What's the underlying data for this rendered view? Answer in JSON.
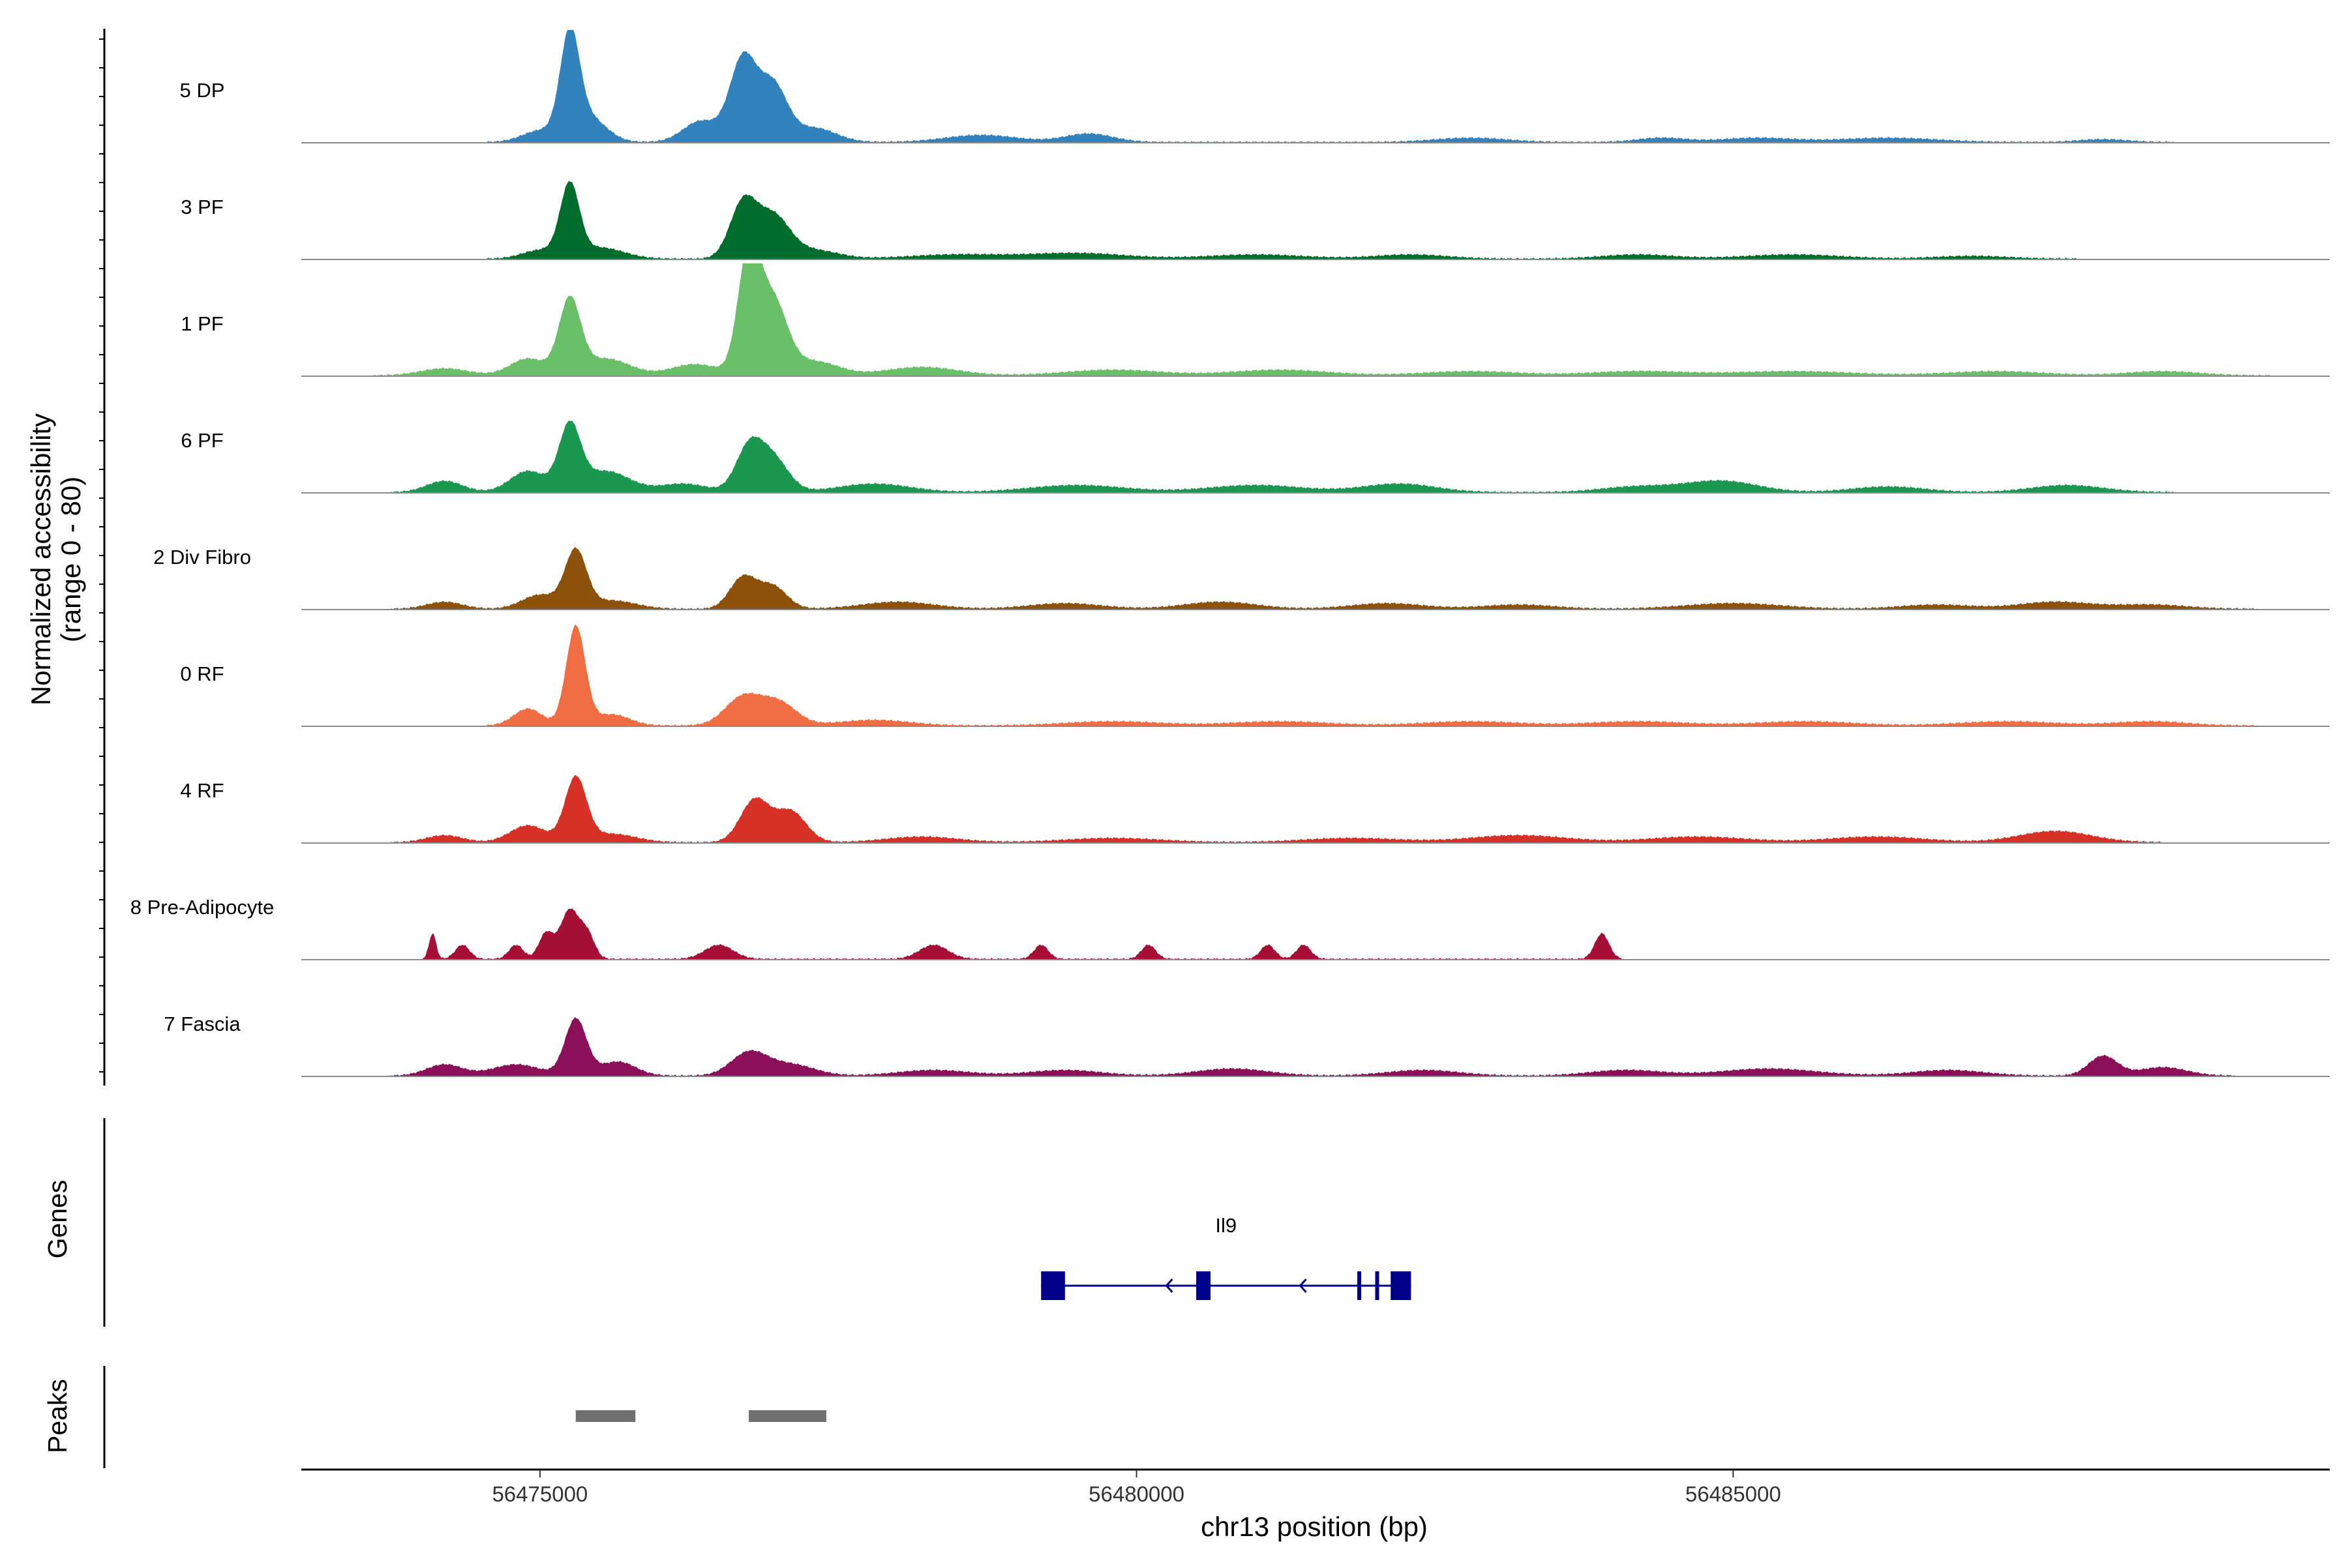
{
  "chart_data": {
    "type": "area",
    "x_axis": {
      "title": "chr13 position (bp)",
      "range": [
        56473000,
        56490000
      ],
      "ticks": [
        56475000,
        56480000,
        56485000
      ],
      "tick_labels": [
        "56475000",
        "56480000",
        "56485000"
      ]
    },
    "y_axis": {
      "title_line1": "Normalized accessibility",
      "title_line2": "(range 0 - 80)",
      "range": [
        0,
        80
      ]
    },
    "grid": false,
    "series": [
      {
        "name": "5 DP",
        "color": "#3182BD",
        "peaks": [
          [
            56475000,
            8,
            150
          ],
          [
            56475250,
            70,
            80
          ],
          [
            56475400,
            18,
            150
          ],
          [
            56476350,
            15,
            150
          ],
          [
            56476700,
            58,
            110
          ],
          [
            56476950,
            40,
            120
          ],
          [
            56477300,
            10,
            180
          ],
          [
            56478700,
            5,
            300
          ],
          [
            56479600,
            6,
            200
          ],
          [
            56482800,
            3,
            300
          ],
          [
            56484400,
            3,
            200
          ],
          [
            56485200,
            3,
            300
          ],
          [
            56486300,
            3,
            400
          ],
          [
            56488100,
            2,
            200
          ]
        ]
      },
      {
        "name": "3 PF",
        "color": "#006D2C",
        "peaks": [
          [
            56475000,
            6,
            150
          ],
          [
            56475250,
            50,
            80
          ],
          [
            56475500,
            8,
            200
          ],
          [
            56476700,
            38,
            110
          ],
          [
            56476950,
            30,
            140
          ],
          [
            56477300,
            6,
            200
          ],
          [
            56478500,
            3,
            400
          ],
          [
            56479500,
            4,
            400
          ],
          [
            56481000,
            3,
            400
          ],
          [
            56482300,
            3,
            300
          ],
          [
            56484200,
            3,
            300
          ],
          [
            56485500,
            3,
            400
          ],
          [
            56487000,
            2,
            300
          ]
        ]
      },
      {
        "name": "1 PF",
        "color": "#6ABF69",
        "peaks": [
          [
            56474200,
            5,
            200
          ],
          [
            56474900,
            12,
            150
          ],
          [
            56475250,
            52,
            90
          ],
          [
            56475550,
            12,
            200
          ],
          [
            56476300,
            8,
            200
          ],
          [
            56476750,
            85,
            90
          ],
          [
            56476950,
            52,
            120
          ],
          [
            56477300,
            10,
            200
          ],
          [
            56478200,
            6,
            300
          ],
          [
            56479800,
            4,
            400
          ],
          [
            56481200,
            4,
            400
          ],
          [
            56482800,
            3,
            400
          ],
          [
            56484200,
            3,
            400
          ],
          [
            56485500,
            3,
            500
          ],
          [
            56487200,
            3,
            400
          ],
          [
            56488600,
            3,
            300
          ]
        ]
      },
      {
        "name": "6 PF",
        "color": "#1A9850",
        "peaks": [
          [
            56474200,
            8,
            150
          ],
          [
            56474900,
            15,
            150
          ],
          [
            56475250,
            45,
            90
          ],
          [
            56475550,
            15,
            200
          ],
          [
            56476200,
            6,
            200
          ],
          [
            56476750,
            30,
            110
          ],
          [
            56476950,
            24,
            130
          ],
          [
            56477800,
            6,
            300
          ],
          [
            56479500,
            5,
            400
          ],
          [
            56481000,
            5,
            400
          ],
          [
            56482200,
            6,
            300
          ],
          [
            56484200,
            4,
            300
          ],
          [
            56484900,
            8,
            300
          ],
          [
            56486300,
            4,
            300
          ],
          [
            56487800,
            5,
            300
          ]
        ]
      },
      {
        "name": "2 Div Fibro",
        "color": "#8C510A",
        "peaks": [
          [
            56474200,
            5,
            150
          ],
          [
            56475000,
            10,
            150
          ],
          [
            56475300,
            40,
            90
          ],
          [
            56475600,
            6,
            200
          ],
          [
            56476700,
            22,
            110
          ],
          [
            56476950,
            16,
            120
          ],
          [
            56478000,
            5,
            300
          ],
          [
            56479400,
            4,
            300
          ],
          [
            56480700,
            5,
            300
          ],
          [
            56482100,
            4,
            300
          ],
          [
            56483200,
            3,
            300
          ],
          [
            56485000,
            4,
            400
          ],
          [
            56486700,
            3,
            300
          ],
          [
            56487700,
            5,
            300
          ],
          [
            56488500,
            3,
            300
          ]
        ]
      },
      {
        "name": "0 RF",
        "color": "#F16D43",
        "peaks": [
          [
            56474900,
            12,
            120
          ],
          [
            56475300,
            70,
            80
          ],
          [
            56475600,
            8,
            150
          ],
          [
            56476700,
            20,
            150
          ],
          [
            56477000,
            16,
            150
          ],
          [
            56477800,
            4,
            300
          ],
          [
            56479800,
            3,
            400
          ],
          [
            56481200,
            3,
            400
          ],
          [
            56482800,
            3,
            400
          ],
          [
            56484200,
            3,
            400
          ],
          [
            56485600,
            3,
            400
          ],
          [
            56487300,
            3,
            400
          ],
          [
            56488500,
            3,
            300
          ]
        ]
      },
      {
        "name": "4 RF",
        "color": "#D73027",
        "peaks": [
          [
            56474200,
            5,
            150
          ],
          [
            56474900,
            12,
            150
          ],
          [
            56475300,
            45,
            90
          ],
          [
            56475600,
            6,
            200
          ],
          [
            56476800,
            30,
            120
          ],
          [
            56477100,
            22,
            130
          ],
          [
            56478200,
            4,
            300
          ],
          [
            56479800,
            3,
            400
          ],
          [
            56481800,
            3,
            400
          ],
          [
            56483200,
            5,
            400
          ],
          [
            56484700,
            4,
            400
          ],
          [
            56486200,
            4,
            400
          ],
          [
            56487700,
            8,
            300
          ]
        ]
      },
      {
        "name": "8 Pre-Adipocyte",
        "color": "#A50F36",
        "peaks": [
          [
            56474100,
            18,
            30
          ],
          [
            56474350,
            10,
            60
          ],
          [
            56474800,
            10,
            60
          ],
          [
            56475050,
            18,
            60
          ],
          [
            56475250,
            35,
            80
          ],
          [
            56475400,
            16,
            60
          ],
          [
            56476500,
            10,
            120
          ],
          [
            56478300,
            10,
            120
          ],
          [
            56479200,
            10,
            60
          ],
          [
            56480100,
            10,
            60
          ],
          [
            56481100,
            10,
            60
          ],
          [
            56481400,
            10,
            60
          ],
          [
            56483900,
            18,
            60
          ]
        ]
      },
      {
        "name": "7 Fascia",
        "color": "#8C0F59",
        "peaks": [
          [
            56474200,
            8,
            150
          ],
          [
            56474800,
            8,
            200
          ],
          [
            56475300,
            40,
            90
          ],
          [
            56475650,
            10,
            150
          ],
          [
            56476750,
            16,
            150
          ],
          [
            56477100,
            8,
            200
          ],
          [
            56478300,
            4,
            300
          ],
          [
            56479400,
            4,
            300
          ],
          [
            56480800,
            5,
            300
          ],
          [
            56482400,
            4,
            300
          ],
          [
            56484100,
            4,
            300
          ],
          [
            56485300,
            5,
            400
          ],
          [
            56486800,
            4,
            300
          ],
          [
            56488100,
            14,
            120
          ],
          [
            56488600,
            6,
            200
          ]
        ]
      }
    ],
    "genes": {
      "title": "Genes",
      "items": [
        {
          "name": "Il9",
          "start": 56479200,
          "end": 56482300,
          "strand": "-",
          "exons": [
            [
              56479200,
              56479400
            ],
            [
              56480500,
              56480620
            ],
            [
              56481850,
              56481880
            ],
            [
              56482000,
              56482030
            ],
            [
              56482130,
              56482300
            ]
          ]
        }
      ],
      "color": "#00008B"
    },
    "peaks_track": {
      "title": "Peaks",
      "color": "#707070",
      "intervals": [
        [
          56475300,
          56475800
        ],
        [
          56476750,
          56477400
        ]
      ]
    }
  }
}
